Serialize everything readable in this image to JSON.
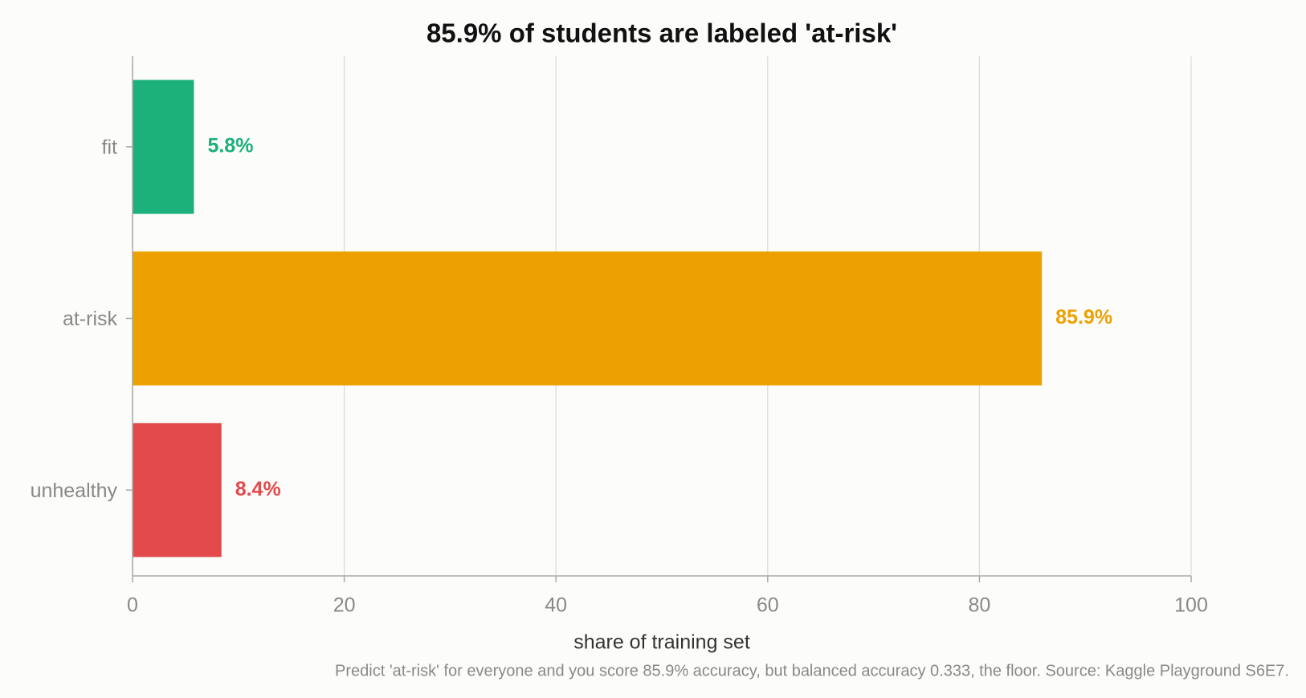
{
  "chart_data": {
    "type": "barh",
    "title": "85.9% of students are labeled 'at-risk'",
    "categories": [
      "fit",
      "at-risk",
      "unhealthy"
    ],
    "values": [
      5.8,
      85.9,
      8.4
    ],
    "value_labels": [
      "5.8%",
      "85.9%",
      "8.4%"
    ],
    "colors": [
      "#1cb07b",
      "#eca100",
      "#e34a4b"
    ],
    "xlim": [
      0,
      100
    ],
    "xticks": [
      0,
      20,
      40,
      60,
      80,
      100
    ],
    "xlabel": "share of training set",
    "footnote": "Predict 'at-risk' for everyone and you score 85.9% accuracy, but balanced accuracy 0.333, the floor. Source: Kaggle Playground S6E7.",
    "grid": true
  }
}
